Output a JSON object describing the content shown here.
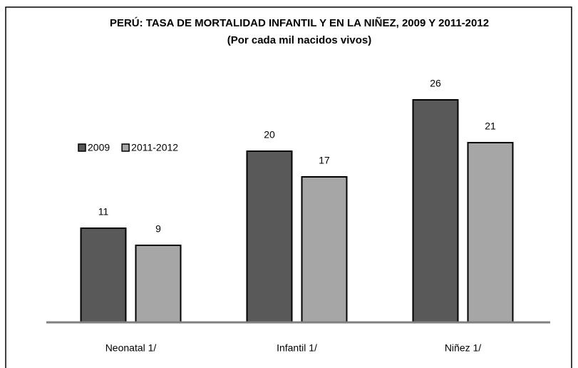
{
  "chart_data": {
    "type": "bar",
    "title": "PERÚ: TASA DE MORTALIDAD INFANTIL Y EN LA NIÑEZ,  2009 Y 2011-2012",
    "subtitle": "(Por cada mil nacidos vivos)",
    "categories": [
      "Neonatal 1/",
      "Infantil 1/",
      "Niñez 1/"
    ],
    "series": [
      {
        "name": "2009",
        "color": "#595959",
        "values": [
          11,
          20,
          26
        ]
      },
      {
        "name": "2011-2012",
        "color": "#a6a6a6",
        "values": [
          9,
          17,
          21
        ]
      }
    ],
    "ylim": [
      0,
      30
    ]
  }
}
